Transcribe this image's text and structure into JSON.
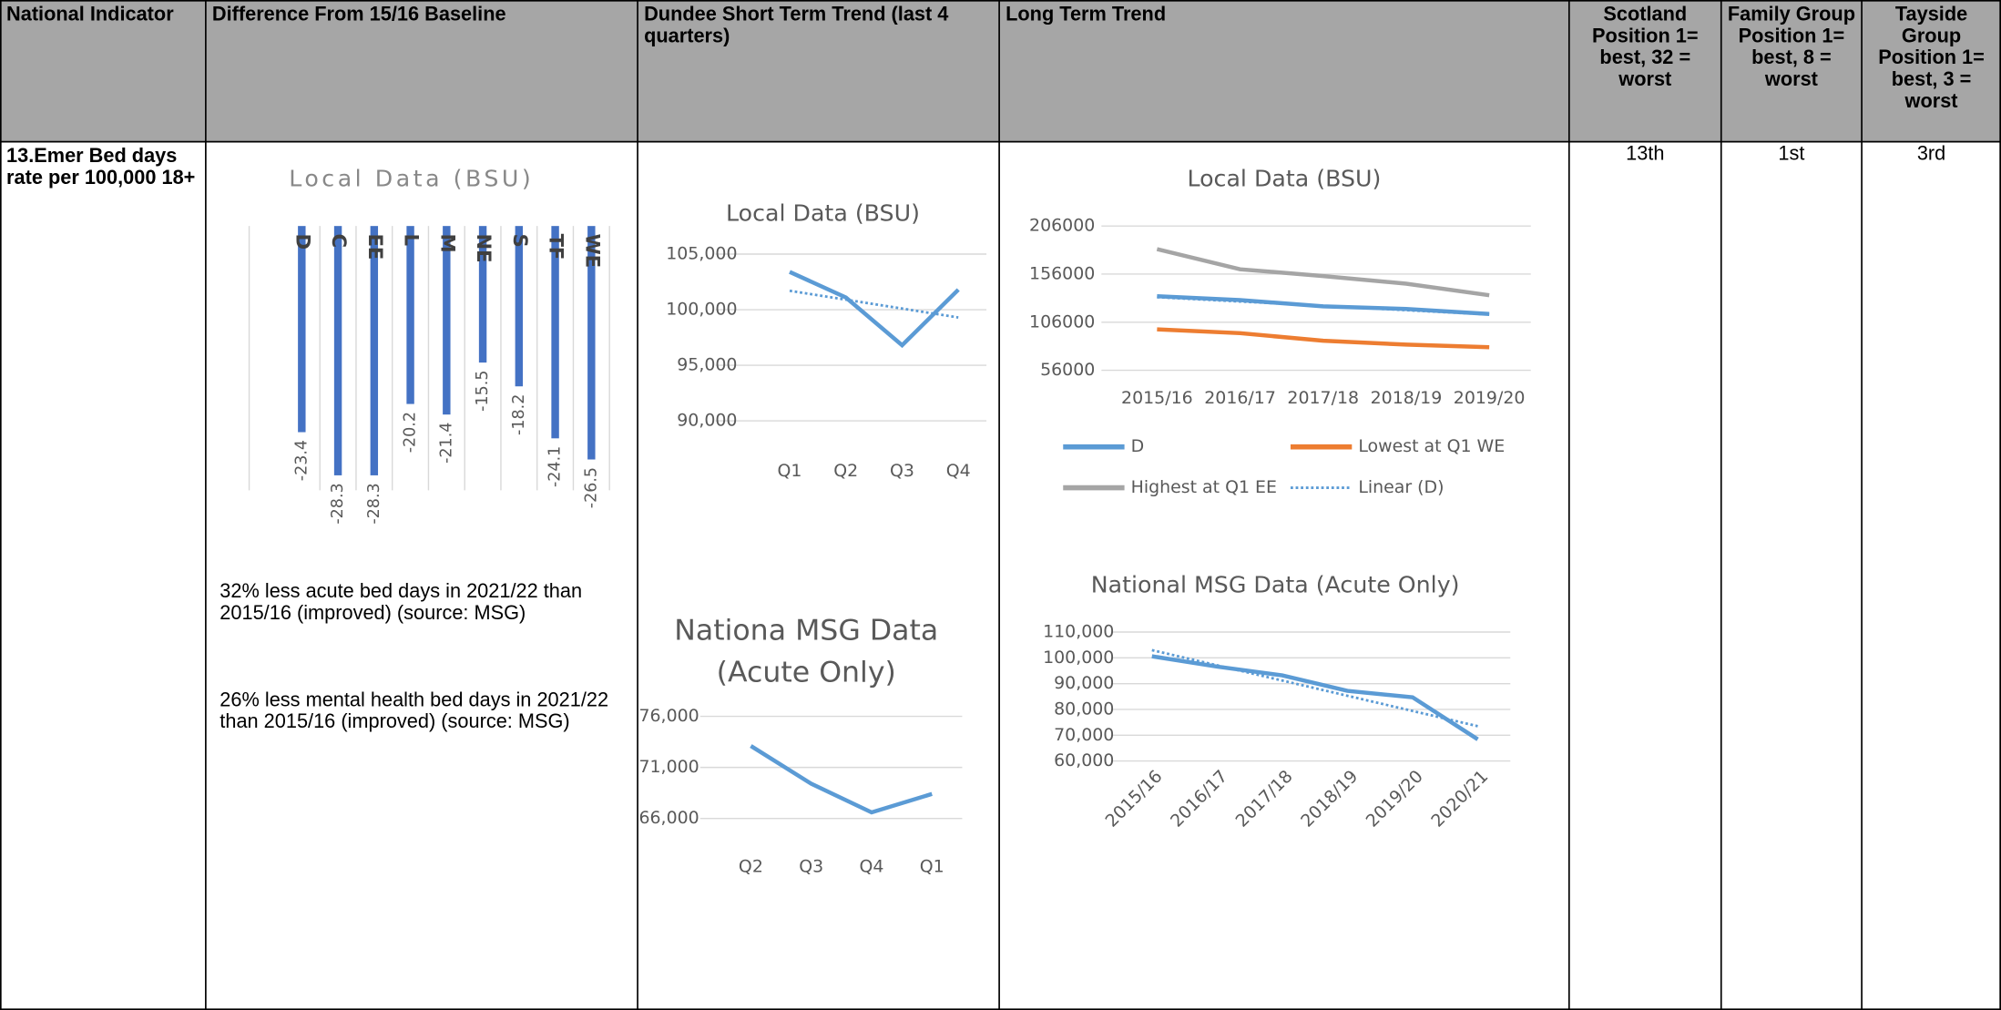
{
  "table": {
    "headers": [
      "National Indicator",
      "Difference From 15/16 Baseline",
      "Dundee Short Term Trend (last 4 quarters)",
      "Long Term Trend",
      "Scotland Position 1= best, 32 = worst",
      "Family Group Position 1= best, 8 = worst",
      "Tayside Group Position 1= best, 3 = worst"
    ],
    "rows": [
      {
        "indicator": "13.Emer Bed days rate per 100,000 18+",
        "notes": [
          "32% less acute bed days in 2021/22 than 2015/16 (improved)  (source: MSG)",
          "26% less mental health bed days in 2021/22 than 2015/16 (improved) (source: MSG)"
        ],
        "positions": [
          "13th",
          "1st",
          "3rd"
        ]
      }
    ]
  },
  "charts": [
    {
      "type": "bar",
      "title": "Local Data (BSU)",
      "color": "#4472c4",
      "categories": [
        "D",
        "C",
        "EE",
        "L",
        "M",
        "NE",
        "S",
        "TF",
        "WE"
      ],
      "values": [
        -23.4,
        -28.3,
        -28.3,
        -20.2,
        -21.4,
        -15.5,
        -18.2,
        -24.1,
        -26.5
      ],
      "ylim": [
        -30,
        0
      ]
    },
    {
      "type": "line",
      "title": "Local Data (BSU)",
      "categories": [
        "Q1",
        "Q2",
        "Q3",
        "Q4"
      ],
      "series": [
        {
          "color": "#5b9bd5",
          "values": [
            103400,
            101100,
            96800,
            101800
          ]
        },
        {
          "color": "#5b9bd5",
          "style": "dotted",
          "values": [
            101700,
            100900,
            100100,
            99300
          ]
        }
      ],
      "ylim": [
        88000,
        105000
      ],
      "yticks": [
        {
          "value": 90000,
          "label": "90,000"
        },
        {
          "value": 95000,
          "label": "95,000"
        },
        {
          "value": 100000,
          "label": "100,000"
        },
        {
          "value": 105000,
          "label": "105,000"
        }
      ],
      "grid": true
    },
    {
      "type": "line",
      "title": "Nationa MSG Data (Acute Only)",
      "categories": [
        "Q2",
        "Q3",
        "Q4",
        "Q1"
      ],
      "series": [
        {
          "color": "#5b9bd5",
          "values": [
            73100,
            69400,
            66600,
            68400
          ]
        }
      ],
      "ylim": [
        64000,
        76000
      ],
      "yticks": [
        {
          "value": 66000,
          "label": "66,000"
        },
        {
          "value": 71000,
          "label": "71,000"
        },
        {
          "value": 76000,
          "label": "76,000"
        }
      ],
      "grid": true
    },
    {
      "type": "line",
      "title": "Local Data (BSU)",
      "categories": [
        "2015/16",
        "2016/17",
        "2017/18",
        "2018/19",
        "2019/20"
      ],
      "series": [
        {
          "name": "D",
          "color": "#5b9bd5",
          "values": [
            133000,
            129000,
            122500,
            119800,
            114500
          ]
        },
        {
          "name": "Lowest at Q1 WE",
          "color": "#ed7d31",
          "values": [
            98600,
            94600,
            86700,
            82700,
            80000
          ]
        },
        {
          "name": "Highest at Q1 EE",
          "color": "#a5a5a5",
          "values": [
            182000,
            161000,
            154000,
            146000,
            134000
          ]
        },
        {
          "name": "Linear (D)",
          "color": "#5b9bd5",
          "style": "dotted",
          "values": [
            132000,
            127500,
            123000,
            118500,
            114000
          ]
        }
      ],
      "ylim": [
        56000,
        206000
      ],
      "yticks": [
        56000,
        106000,
        156000,
        206000
      ],
      "grid": true,
      "legend": "bottom"
    },
    {
      "type": "line",
      "title": "National MSG Data (Acute Only)",
      "categories": [
        "2015/16",
        "2016/17",
        "2017/18",
        "2018/19",
        "2019/20",
        "2020/21"
      ],
      "series": [
        {
          "color": "#5b9bd5",
          "values": [
            100600,
            96600,
            93200,
            87200,
            84700,
            68400
          ]
        },
        {
          "color": "#5b9bd5",
          "style": "dotted",
          "values": [
            103000,
            97100,
            91200,
            85300,
            79400,
            73500
          ]
        }
      ],
      "ylim": [
        60000,
        110000
      ],
      "yticks": [
        {
          "value": 60000,
          "label": "60,000"
        },
        {
          "value": 70000,
          "label": "70,000"
        },
        {
          "value": 80000,
          "label": "80,000"
        },
        {
          "value": 90000,
          "label": "90,000"
        },
        {
          "value": 100000,
          "label": "100,000"
        },
        {
          "value": 110000,
          "label": "110,000"
        }
      ],
      "grid": true
    }
  ]
}
